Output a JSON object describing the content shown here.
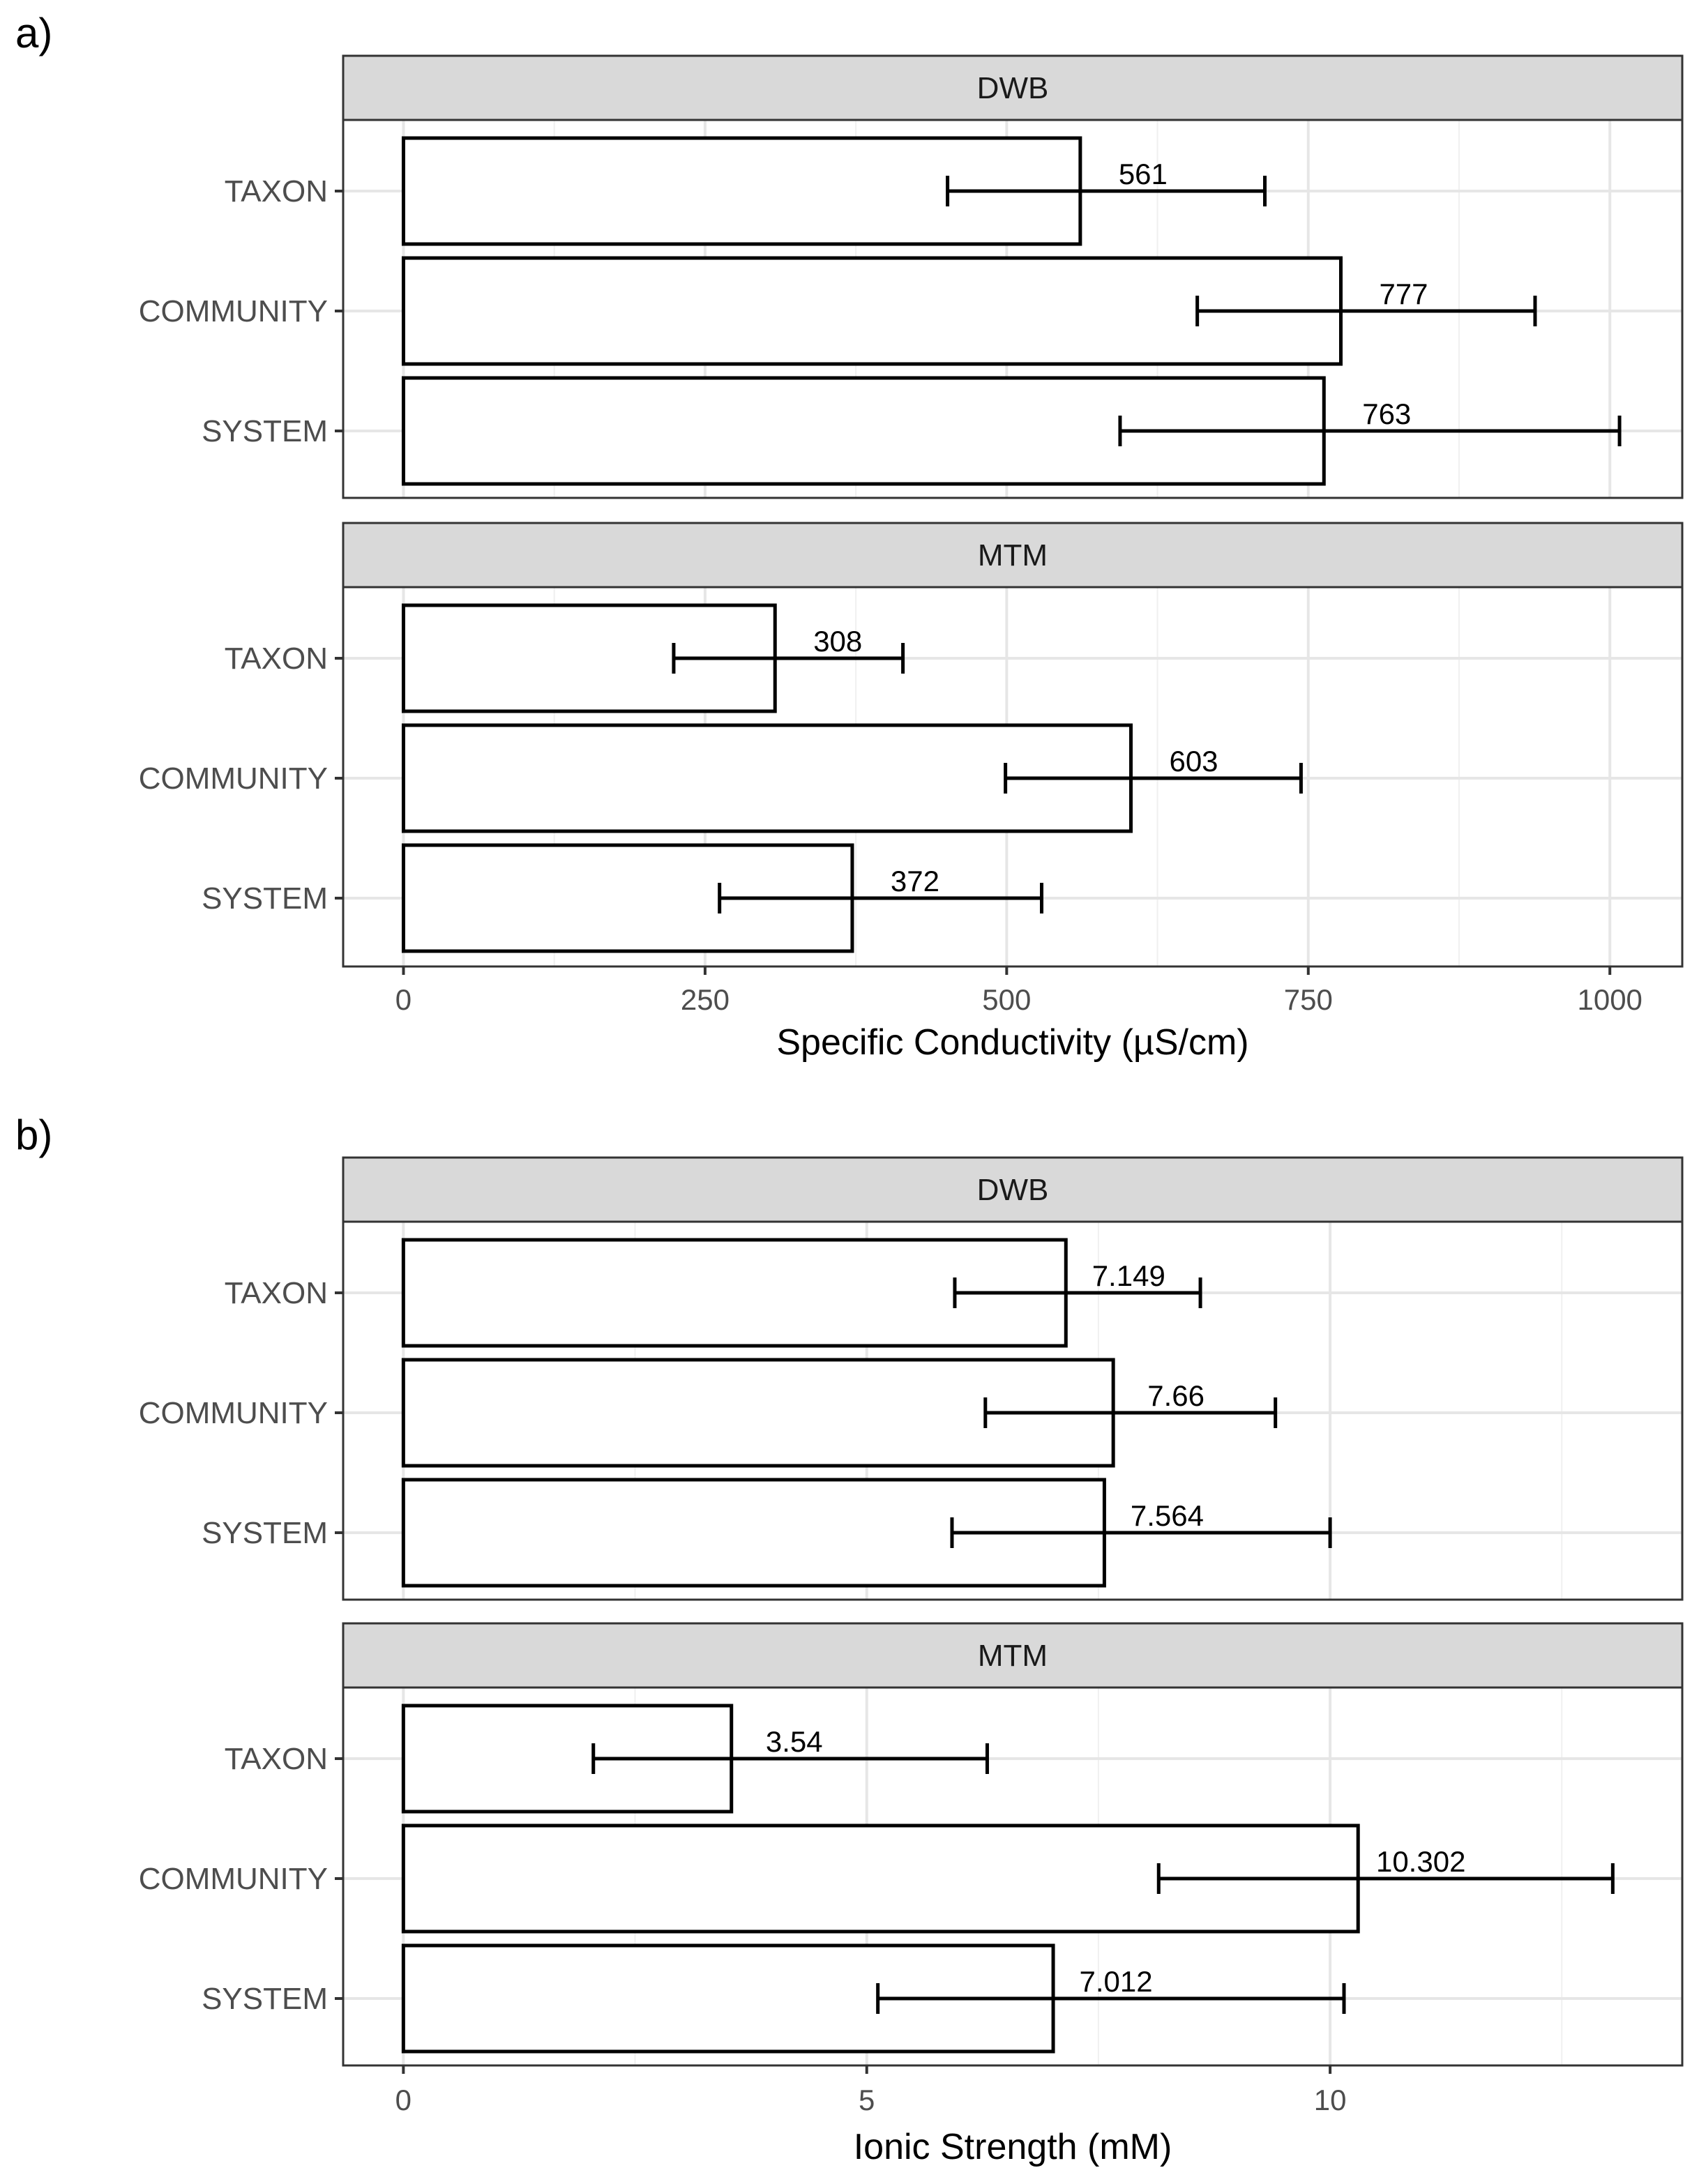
{
  "chart_data": [
    {
      "panel_label": "a)",
      "type": "bar",
      "orientation": "horizontal",
      "xlabel": "Specific Conductivity (µS/cm)",
      "xlim": [
        -50,
        1060
      ],
      "xticks": [
        0,
        250,
        500,
        750,
        1000
      ],
      "xtick_labels": [
        "0",
        "250",
        "500",
        "750",
        "1000"
      ],
      "grid": true,
      "facets": [
        {
          "label": "DWB",
          "bars": [
            {
              "category": "TAXON",
              "value": 561,
              "label": "561",
              "err_low": 451,
              "err_high": 714
            },
            {
              "category": "COMMUNITY",
              "value": 777,
              "label": "777",
              "err_low": 658,
              "err_high": 938
            },
            {
              "category": "SYSTEM",
              "value": 763,
              "label": "763",
              "err_low": 594,
              "err_high": 1008
            }
          ]
        },
        {
          "label": "MTM",
          "bars": [
            {
              "category": "TAXON",
              "value": 308,
              "label": "308",
              "err_low": 224,
              "err_high": 414
            },
            {
              "category": "COMMUNITY",
              "value": 603,
              "label": "603",
              "err_low": 499,
              "err_high": 744
            },
            {
              "category": "SYSTEM",
              "value": 372,
              "label": "372",
              "err_low": 262,
              "err_high": 529
            }
          ]
        }
      ]
    },
    {
      "panel_label": "b)",
      "type": "bar",
      "orientation": "horizontal",
      "xlabel": "Ionic Strength (mM)",
      "xlim": [
        -0.65,
        13.8
      ],
      "xticks": [
        0,
        5,
        10
      ],
      "xtick_labels": [
        "0",
        "5",
        "10"
      ],
      "grid": true,
      "facets": [
        {
          "label": "DWB",
          "bars": [
            {
              "category": "TAXON",
              "value": 7.149,
              "label": "7.149",
              "err_low": 5.95,
              "err_high": 8.6
            },
            {
              "category": "COMMUNITY",
              "value": 7.66,
              "label": "7.66",
              "err_low": 6.28,
              "err_high": 9.41
            },
            {
              "category": "SYSTEM",
              "value": 7.564,
              "label": "7.564",
              "err_low": 5.92,
              "err_high": 10.0
            }
          ]
        },
        {
          "label": "MTM",
          "bars": [
            {
              "category": "TAXON",
              "value": 3.54,
              "label": "3.54",
              "err_low": 2.05,
              "err_high": 6.3
            },
            {
              "category": "COMMUNITY",
              "value": 10.302,
              "label": "10.302",
              "err_low": 8.15,
              "err_high": 13.05
            },
            {
              "category": "SYSTEM",
              "value": 7.012,
              "label": "7.012",
              "err_low": 5.12,
              "err_high": 10.15
            }
          ]
        }
      ]
    }
  ]
}
